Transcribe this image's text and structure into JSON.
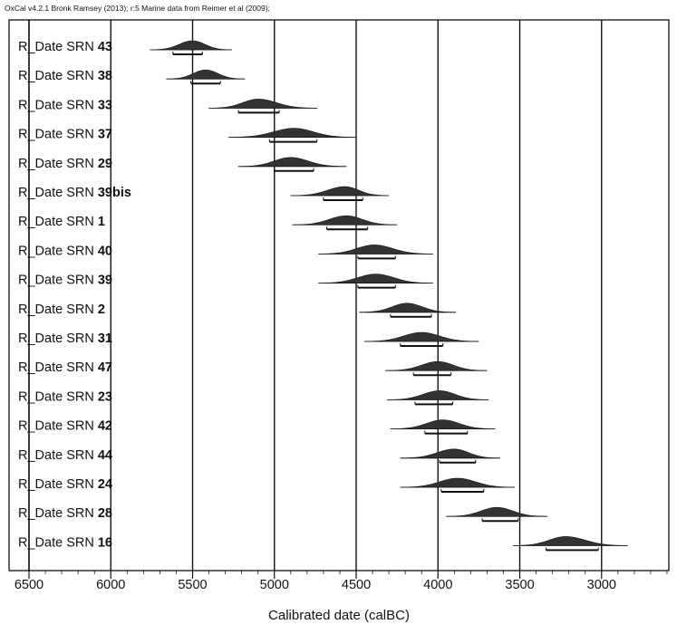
{
  "header": "OxCal v4.2.1 Bronk Ramsey (2013); r:5 Marine data from Reimer et al (2009);",
  "chart_data": {
    "type": "scatter",
    "title": "",
    "xlabel": "Calibrated date (calBC)",
    "ylabel": "",
    "xlim": [
      6500,
      2550
    ],
    "x_reversed": true,
    "grid": "vertical",
    "xticks": [
      6500,
      6000,
      5500,
      5000,
      4500,
      4000,
      3500,
      3000
    ],
    "color": "#333333",
    "series": [
      {
        "prefix": "R_Date SRN",
        "id": "43",
        "peak": 5500,
        "range": [
          5620,
          5440
        ],
        "tails": [
          5760,
          5260
        ]
      },
      {
        "prefix": "R_Date SRN",
        "id": "38",
        "peak": 5420,
        "range": [
          5510,
          5330
        ],
        "tails": [
          5660,
          5180
        ]
      },
      {
        "prefix": "R_Date SRN",
        "id": "33",
        "peak": 5100,
        "range": [
          5220,
          4970
        ],
        "tails": [
          5400,
          4740
        ]
      },
      {
        "prefix": "R_Date SRN",
        "id": "37",
        "peak": 4880,
        "range": [
          5030,
          4740
        ],
        "tails": [
          5280,
          4500
        ]
      },
      {
        "prefix": "R_Date SRN",
        "id": "29",
        "peak": 4900,
        "range": [
          5000,
          4760
        ],
        "tails": [
          5220,
          4560
        ]
      },
      {
        "prefix": "R_Date SRN",
        "id": "39bis",
        "peak": 4570,
        "range": [
          4700,
          4460
        ],
        "tails": [
          4900,
          4300
        ]
      },
      {
        "prefix": "R_Date SRN",
        "id": "1",
        "peak": 4560,
        "range": [
          4680,
          4430
        ],
        "tails": [
          4890,
          4250
        ]
      },
      {
        "prefix": "R_Date SRN",
        "id": "40",
        "peak": 4390,
        "range": [
          4490,
          4260
        ],
        "tails": [
          4730,
          4030
        ]
      },
      {
        "prefix": "R_Date SRN",
        "id": "39",
        "peak": 4380,
        "range": [
          4490,
          4260
        ],
        "tails": [
          4730,
          4030
        ]
      },
      {
        "prefix": "R_Date SRN",
        "id": "2",
        "peak": 4190,
        "range": [
          4290,
          4040
        ],
        "tails": [
          4480,
          3890
        ]
      },
      {
        "prefix": "R_Date SRN",
        "id": "31",
        "peak": 4100,
        "range": [
          4230,
          3970
        ],
        "tails": [
          4450,
          3750
        ]
      },
      {
        "prefix": "R_Date SRN",
        "id": "47",
        "peak": 4000,
        "range": [
          4150,
          3920
        ],
        "tails": [
          4320,
          3700
        ]
      },
      {
        "prefix": "R_Date SRN",
        "id": "23",
        "peak": 3990,
        "range": [
          4140,
          3910
        ],
        "tails": [
          4310,
          3690
        ]
      },
      {
        "prefix": "R_Date SRN",
        "id": "42",
        "peak": 3970,
        "range": [
          4080,
          3820
        ],
        "tails": [
          4290,
          3650
        ]
      },
      {
        "prefix": "R_Date SRN",
        "id": "44",
        "peak": 3900,
        "range": [
          3990,
          3770
        ],
        "tails": [
          4230,
          3620
        ]
      },
      {
        "prefix": "R_Date SRN",
        "id": "24",
        "peak": 3880,
        "range": [
          3980,
          3720
        ],
        "tails": [
          4230,
          3530
        ]
      },
      {
        "prefix": "R_Date SRN",
        "id": "28",
        "peak": 3640,
        "range": [
          3730,
          3510
        ],
        "tails": [
          3950,
          3330
        ]
      },
      {
        "prefix": "R_Date SRN",
        "id": "16",
        "peak": 3220,
        "range": [
          3340,
          3020
        ],
        "tails": [
          3540,
          2840
        ]
      }
    ]
  }
}
